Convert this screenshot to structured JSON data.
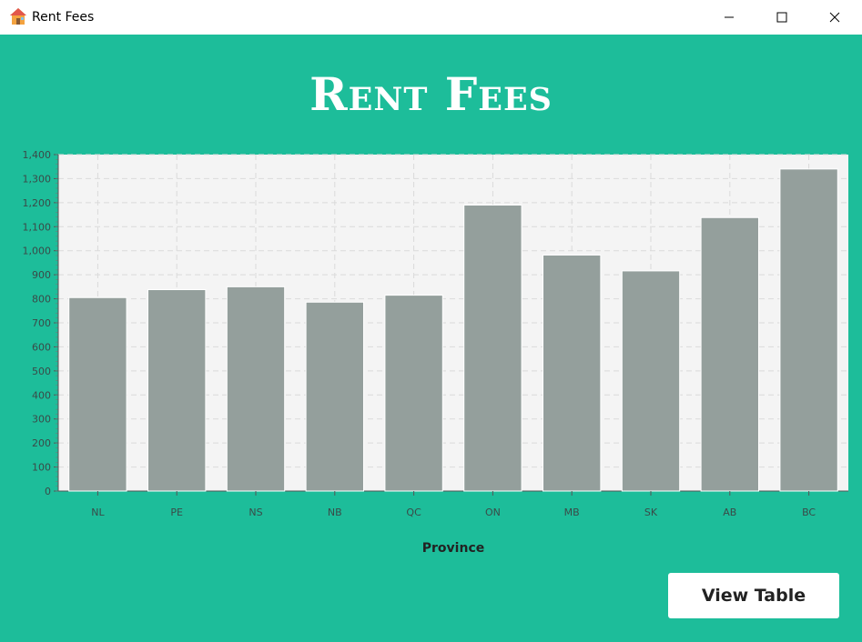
{
  "window": {
    "title": "Rent Fees",
    "app_icon": "house-icon"
  },
  "heading": "Rent Fees",
  "chart_data": {
    "type": "bar",
    "categories": [
      "NL",
      "PE",
      "NS",
      "NB",
      "QC",
      "ON",
      "MB",
      "SK",
      "AB",
      "BC"
    ],
    "values": [
      805,
      838,
      850,
      786,
      815,
      1190,
      982,
      916,
      1138,
      1340
    ],
    "xlabel": "Province",
    "ylabel": "",
    "ylim": [
      0,
      1400
    ],
    "yticks": [
      "0",
      "100",
      "200",
      "300",
      "400",
      "500",
      "600",
      "700",
      "800",
      "900",
      "1,000",
      "1,100",
      "1,200",
      "1,300",
      "1,400"
    ],
    "grid": true,
    "bar_color": "#949f9c",
    "plot_background": "#f4f4f4"
  },
  "actions": {
    "view_table_label": "View Table"
  },
  "colors": {
    "background": "#1dbd9a",
    "button_background": "#ffffff"
  }
}
